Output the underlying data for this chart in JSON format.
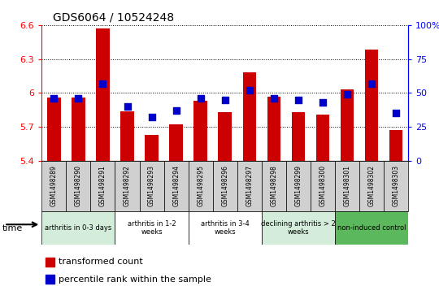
{
  "title": "GDS6064 / 10524248",
  "samples": [
    "GSM1498289",
    "GSM1498290",
    "GSM1498291",
    "GSM1498292",
    "GSM1498293",
    "GSM1498294",
    "GSM1498295",
    "GSM1498296",
    "GSM1498297",
    "GSM1498298",
    "GSM1498299",
    "GSM1498300",
    "GSM1498301",
    "GSM1498302",
    "GSM1498303"
  ],
  "red_values": [
    5.96,
    5.96,
    6.57,
    5.84,
    5.63,
    5.72,
    5.93,
    5.83,
    6.18,
    5.97,
    5.83,
    5.81,
    6.03,
    6.38,
    5.67
  ],
  "blue_values": [
    46,
    46,
    57,
    40,
    32,
    37,
    46,
    45,
    52,
    46,
    45,
    43,
    49,
    57,
    35
  ],
  "ylim": [
    5.4,
    6.6
  ],
  "yticks": [
    5.4,
    5.7,
    6.0,
    6.3,
    6.6
  ],
  "ytick_labels": [
    "5.4",
    "5.7",
    "6",
    "6.3",
    "6.6"
  ],
  "y2lim": [
    0,
    100
  ],
  "y2ticks": [
    0,
    25,
    50,
    75,
    100
  ],
  "y2tick_labels": [
    "0",
    "25",
    "50",
    "75",
    "100%"
  ],
  "groups": [
    {
      "label": "arthritis in 0-3 days",
      "start": 0,
      "end": 2,
      "color": "#d4edda"
    },
    {
      "label": "arthritis in 1-2\nweeks",
      "start": 3,
      "end": 5,
      "color": "#ffffff"
    },
    {
      "label": "arthritis in 3-4\nweeks",
      "start": 6,
      "end": 8,
      "color": "#ffffff"
    },
    {
      "label": "declining arthritis > 2\nweeks",
      "start": 9,
      "end": 11,
      "color": "#d4edda"
    },
    {
      "label": "non-induced control",
      "start": 12,
      "end": 14,
      "color": "#5cb85c"
    }
  ],
  "bar_color": "#cc0000",
  "dot_color": "#0000cc",
  "bar_width": 0.55,
  "dot_size": 30,
  "legend1": "transformed count",
  "legend2": "percentile rank within the sample",
  "baseline": 5.4
}
